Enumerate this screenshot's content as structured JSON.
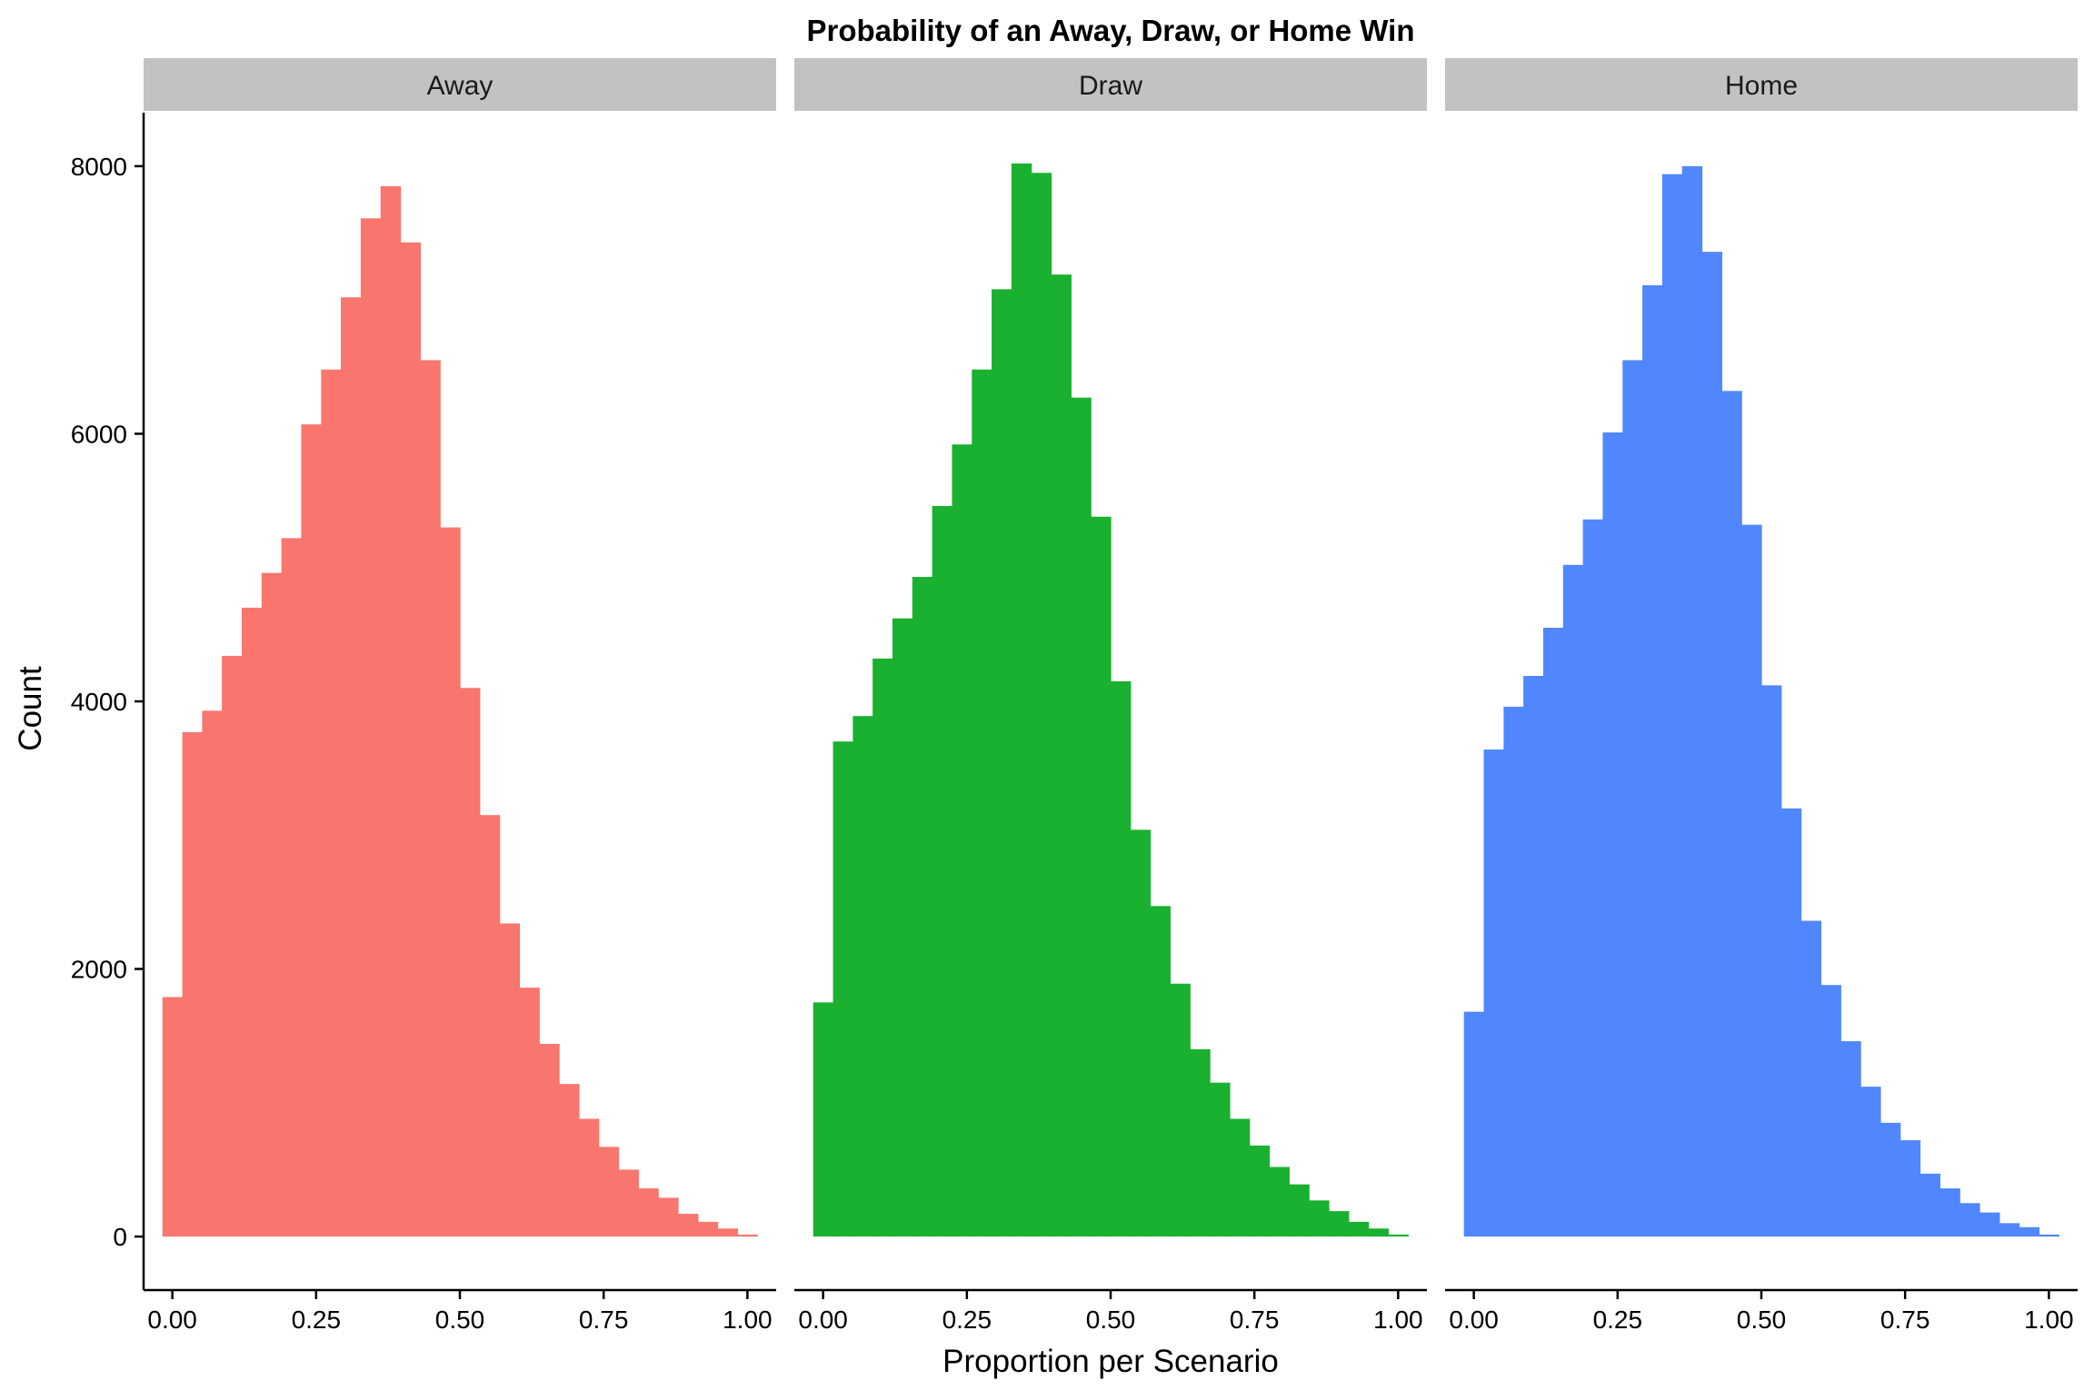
{
  "chart_data": {
    "type": "bar",
    "chart_kind": "histogram-faceted",
    "title": "Probability of an Away, Draw, or Home Win",
    "xlabel": "Proportion per Scenario",
    "ylabel": "Count",
    "xlim": [
      -0.05,
      1.05
    ],
    "ylim": [
      -400,
      8400
    ],
    "x_ticks": [
      0,
      0.25,
      0.5,
      0.75,
      1
    ],
    "x_tick_labels": [
      "0.00",
      "0.25",
      "0.50",
      "0.75",
      "1.00"
    ],
    "y_ticks": [
      0,
      2000,
      4000,
      6000,
      8000
    ],
    "y_tick_labels": [
      "0",
      "2000",
      "4000",
      "6000",
      "8000"
    ],
    "bin_width": 0.0345,
    "bin_centers": [
      0,
      0.0345,
      0.069,
      0.1034,
      0.1379,
      0.1724,
      0.2069,
      0.2414,
      0.2759,
      0.3103,
      0.3448,
      0.3793,
      0.4138,
      0.4483,
      0.4828,
      0.5172,
      0.5517,
      0.5862,
      0.6207,
      0.6552,
      0.6897,
      0.7241,
      0.7586,
      0.7931,
      0.8276,
      0.8621,
      0.8966,
      0.931,
      0.9655,
      1.0
    ],
    "grid": false,
    "legend": "none",
    "series": [
      {
        "name": "Away",
        "color": "#f8766d",
        "values": [
          1790,
          3770,
          3930,
          4340,
          4700,
          4960,
          5220,
          6070,
          6480,
          7020,
          7610,
          7850,
          7430,
          6550,
          5300,
          4100,
          3150,
          2340,
          1860,
          1440,
          1140,
          880,
          670,
          500,
          360,
          290,
          170,
          110,
          60,
          15
        ]
      },
      {
        "name": "Draw",
        "color": "#1ab030",
        "values": [
          1750,
          3700,
          3890,
          4320,
          4620,
          4930,
          5460,
          5920,
          6480,
          7080,
          8020,
          7950,
          7190,
          6270,
          5380,
          4150,
          3040,
          2470,
          1890,
          1400,
          1150,
          880,
          680,
          520,
          390,
          270,
          190,
          110,
          60,
          15
        ]
      },
      {
        "name": "Home",
        "color": "#5087ff",
        "values": [
          1680,
          3640,
          3960,
          4190,
          4550,
          5020,
          5360,
          6010,
          6550,
          7110,
          7940,
          8000,
          7360,
          6320,
          5320,
          4120,
          3200,
          2360,
          1880,
          1460,
          1120,
          850,
          720,
          470,
          360,
          250,
          180,
          100,
          70,
          15
        ]
      }
    ]
  }
}
